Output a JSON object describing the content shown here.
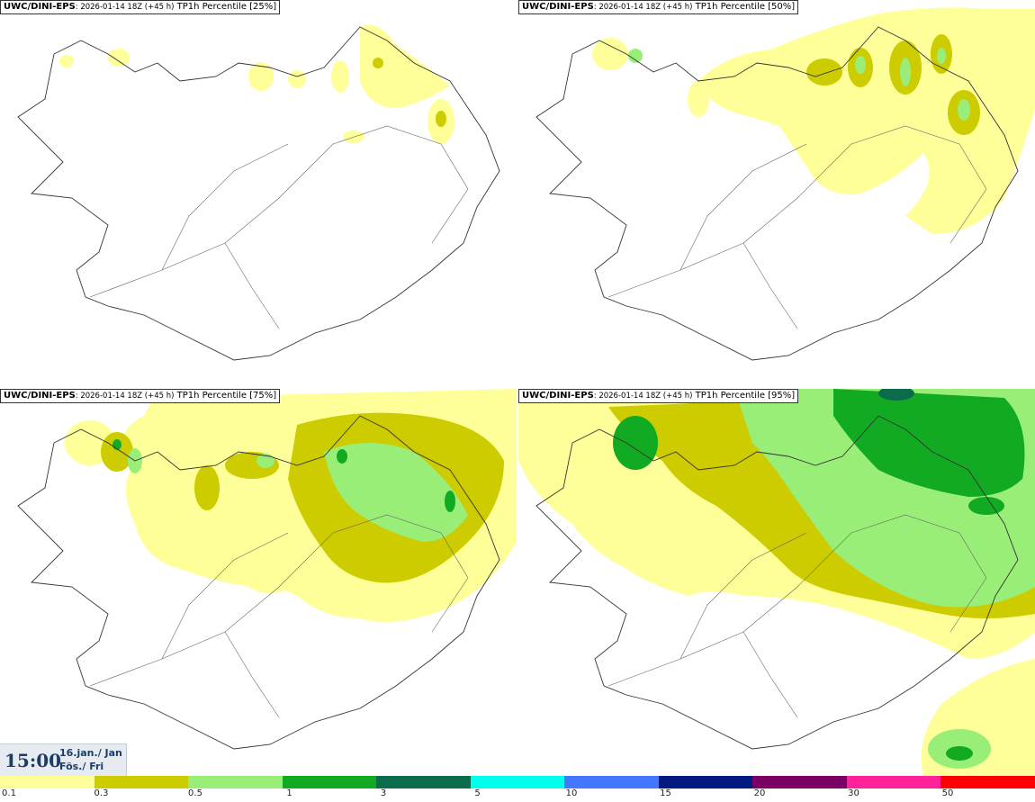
{
  "panels": [
    {
      "model": "UWC/DINI-EPS",
      "run": ": 2026-01-14 18Z (+45 h)",
      "product": " TP1h Percentile [25%]"
    },
    {
      "model": "UWC/DINI-EPS",
      "run": ": 2026-01-14 18Z (+45 h)",
      "product": " TP1h Percentile [50%]"
    },
    {
      "model": "UWC/DINI-EPS",
      "run": ": 2026-01-14 18Z (+45 h)",
      "product": " TP1h Percentile [75%]"
    },
    {
      "model": "UWC/DINI-EPS",
      "run": ": 2026-01-14 18Z (+45 h)",
      "product": " TP1h Percentile [95%]"
    }
  ],
  "valid_time": {
    "time": "15:00",
    "date_line1": "16.jan./ Jan",
    "date_line2": "Fös./ Fri"
  },
  "legend": {
    "labels": [
      "0.1",
      "0.3",
      "0.5",
      "1",
      "3",
      "5",
      "10",
      "15",
      "20",
      "30",
      "50"
    ],
    "colors": [
      "#ffff99",
      "#cccc00",
      "#99ee77",
      "#11aa22",
      "#0b6b4a",
      "#00ffee",
      "#4477ff",
      "#001a80",
      "#7a0066",
      "#ff2299",
      "#ff0000"
    ]
  }
}
